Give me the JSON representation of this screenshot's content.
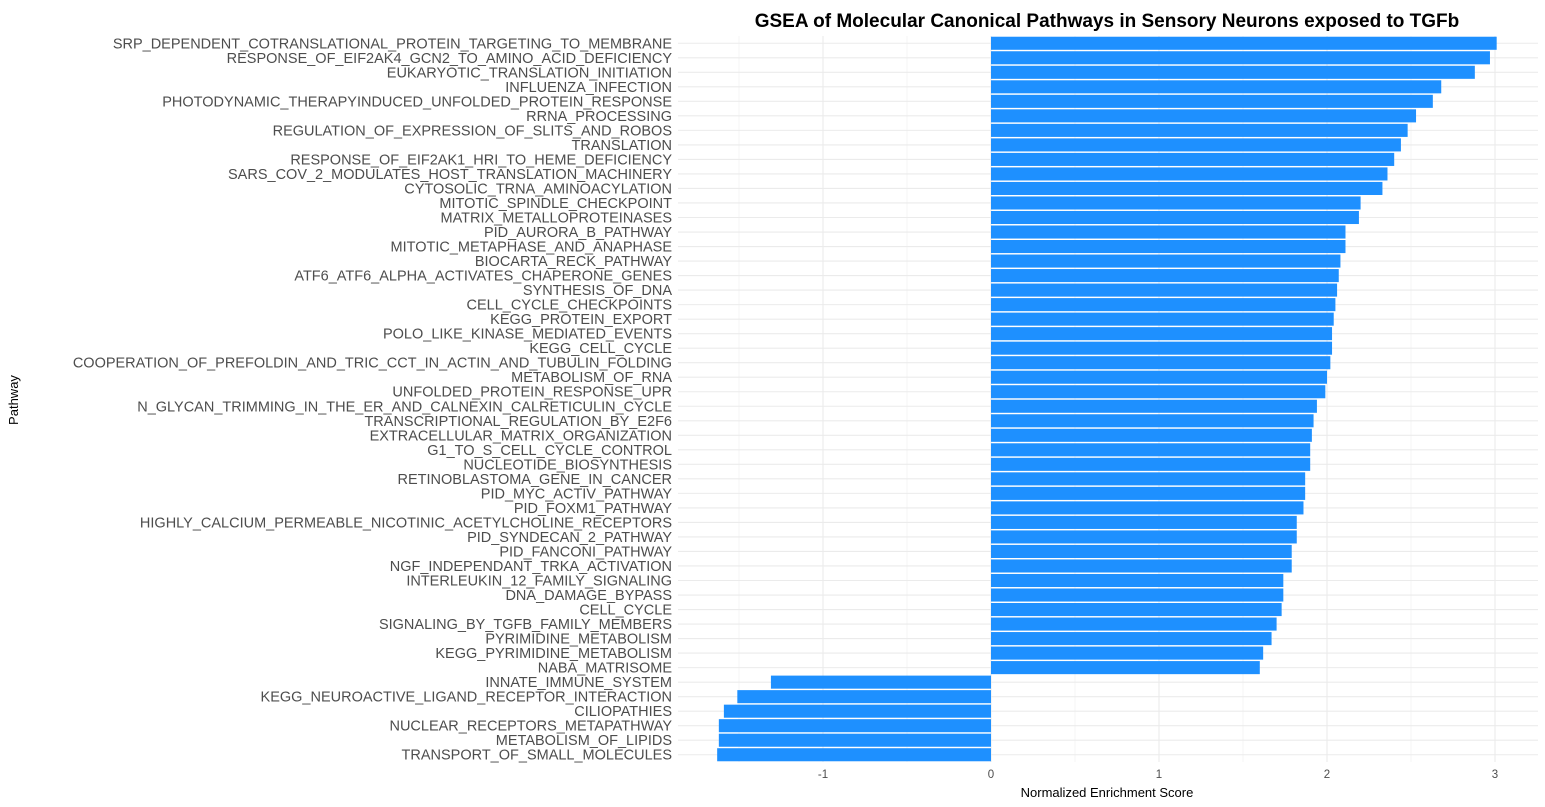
{
  "chart_data": {
    "type": "bar",
    "orientation": "horizontal",
    "title": "GSEA of Molecular Canonical Pathways in Sensory Neurons exposed to TGFb",
    "xlabel": "Normalized Enrichment Score",
    "ylabel": "Pathway",
    "xlim": [
      -1.8,
      3.25
    ],
    "xticks": [
      -1,
      0,
      1,
      2,
      3
    ],
    "grid": true,
    "bar_color": "#1e90ff",
    "categories": [
      "SRP_DEPENDENT_COTRANSLATIONAL_PROTEIN_TARGETING_TO_MEMBRANE",
      "RESPONSE_OF_EIF2AK4_GCN2_TO_AMINO_ACID_DEFICIENCY",
      "EUKARYOTIC_TRANSLATION_INITIATION",
      "INFLUENZA_INFECTION",
      "PHOTODYNAMIC_THERAPYINDUCED_UNFOLDED_PROTEIN_RESPONSE",
      "RRNA_PROCESSING",
      "REGULATION_OF_EXPRESSION_OF_SLITS_AND_ROBOS",
      "TRANSLATION",
      "RESPONSE_OF_EIF2AK1_HRI_TO_HEME_DEFICIENCY",
      "SARS_COV_2_MODULATES_HOST_TRANSLATION_MACHINERY",
      "CYTOSOLIC_TRNA_AMINOACYLATION",
      "MITOTIC_SPINDLE_CHECKPOINT",
      "MATRIX_METALLOPROTEINASES",
      "PID_AURORA_B_PATHWAY",
      "MITOTIC_METAPHASE_AND_ANAPHASE",
      "BIOCARTA_RECK_PATHWAY",
      "ATF6_ATF6_ALPHA_ACTIVATES_CHAPERONE_GENES",
      "SYNTHESIS_OF_DNA",
      "CELL_CYCLE_CHECKPOINTS",
      "KEGG_PROTEIN_EXPORT",
      "POLO_LIKE_KINASE_MEDIATED_EVENTS",
      "KEGG_CELL_CYCLE",
      "COOPERATION_OF_PREFOLDIN_AND_TRIC_CCT_IN_ACTIN_AND_TUBULIN_FOLDING",
      "METABOLISM_OF_RNA",
      "UNFOLDED_PROTEIN_RESPONSE_UPR",
      "N_GLYCAN_TRIMMING_IN_THE_ER_AND_CALNEXIN_CALRETICULIN_CYCLE",
      "TRANSCRIPTIONAL_REGULATION_BY_E2F6",
      "EXTRACELLULAR_MATRIX_ORGANIZATION",
      "G1_TO_S_CELL_CYCLE_CONTROL",
      "NUCLEOTIDE_BIOSYNTHESIS",
      "RETINOBLASTOMA_GENE_IN_CANCER",
      "PID_MYC_ACTIV_PATHWAY",
      "PID_FOXM1_PATHWAY",
      "HIGHLY_CALCIUM_PERMEABLE_NICOTINIC_ACETYLCHOLINE_RECEPTORS",
      "PID_SYNDECAN_2_PATHWAY",
      "PID_FANCONI_PATHWAY",
      "NGF_INDEPENDANT_TRKA_ACTIVATION",
      "INTERLEUKIN_12_FAMILY_SIGNALING",
      "DNA_DAMAGE_BYPASS",
      "CELL_CYCLE",
      "SIGNALING_BY_TGFB_FAMILY_MEMBERS",
      "PYRIMIDINE_METABOLISM",
      "KEGG_PYRIMIDINE_METABOLISM",
      "NABA_MATRISOME",
      "INNATE_IMMUNE_SYSTEM",
      "KEGG_NEUROACTIVE_LIGAND_RECEPTOR_INTERACTION",
      "CILIOPATHIES",
      "NUCLEAR_RECEPTORS_METAPATHWAY",
      "METABOLISM_OF_LIPIDS",
      "TRANSPORT_OF_SMALL_MOLECULES"
    ],
    "values": [
      3.01,
      2.97,
      2.88,
      2.68,
      2.63,
      2.53,
      2.48,
      2.44,
      2.4,
      2.36,
      2.33,
      2.2,
      2.19,
      2.11,
      2.11,
      2.08,
      2.07,
      2.06,
      2.05,
      2.04,
      2.03,
      2.03,
      2.02,
      2.0,
      1.99,
      1.94,
      1.92,
      1.91,
      1.9,
      1.9,
      1.87,
      1.87,
      1.86,
      1.82,
      1.82,
      1.79,
      1.79,
      1.74,
      1.74,
      1.73,
      1.7,
      1.67,
      1.62,
      1.6,
      -1.31,
      -1.51,
      -1.59,
      -1.62,
      -1.62,
      -1.63
    ]
  }
}
